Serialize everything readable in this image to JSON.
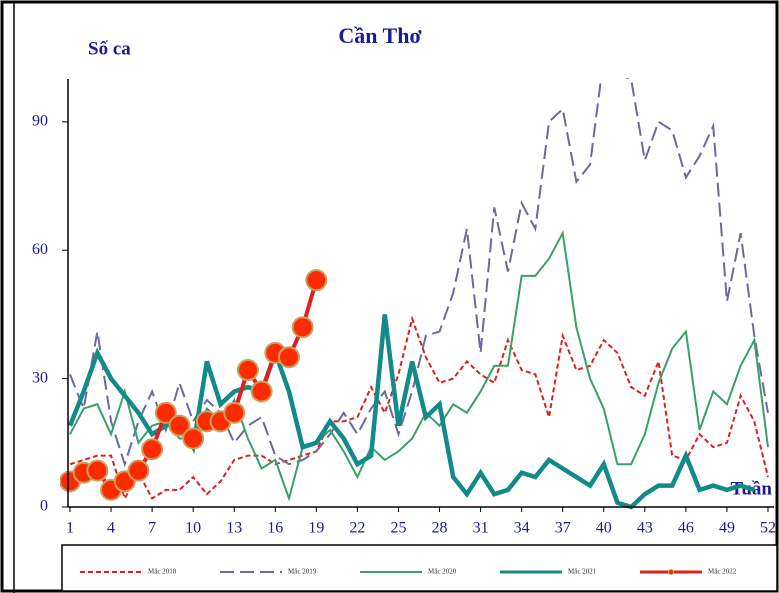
{
  "chart_data": {
    "type": "line",
    "title": "Cần Thơ",
    "y_label": "Số ca",
    "x_label": "Tuần",
    "x": [
      1,
      2,
      3,
      4,
      5,
      6,
      7,
      8,
      9,
      10,
      11,
      12,
      13,
      14,
      15,
      16,
      17,
      18,
      19,
      20,
      21,
      22,
      23,
      24,
      25,
      26,
      27,
      28,
      29,
      30,
      31,
      32,
      33,
      34,
      35,
      36,
      37,
      38,
      39,
      40,
      41,
      42,
      43,
      44,
      45,
      46,
      47,
      48,
      49,
      50,
      51,
      52
    ],
    "xlim": [
      1,
      52
    ],
    "xticks": [
      1,
      4,
      7,
      10,
      13,
      16,
      19,
      22,
      25,
      28,
      31,
      34,
      37,
      40,
      43,
      46,
      49,
      52
    ],
    "ylim": [
      0,
      100
    ],
    "yticks": [
      0,
      30,
      60,
      90
    ],
    "series": [
      {
        "name": "Mắc 2018",
        "color": "#e02020",
        "dash": "5,3",
        "width": 2,
        "values": [
          10,
          11,
          12,
          12,
          2,
          8,
          2,
          4,
          4,
          7,
          3,
          6,
          11,
          12,
          12,
          10,
          11,
          12,
          13,
          20,
          20,
          21,
          28,
          22,
          31,
          44,
          35,
          29,
          30,
          34,
          31,
          29,
          39,
          32,
          31,
          21,
          40,
          32,
          33,
          39,
          36,
          28,
          26,
          34,
          12,
          11,
          17,
          14,
          15,
          26,
          20,
          7
        ]
      },
      {
        "name": "Mắc 2019",
        "color": "#6a6aa0",
        "dash": "14,6",
        "width": 2,
        "values": [
          31,
          23,
          41,
          20,
          10,
          20,
          27,
          18,
          29,
          20,
          25,
          22,
          15,
          19,
          21,
          12,
          10,
          11,
          13,
          17,
          22,
          17,
          23,
          27,
          17,
          27,
          40,
          41,
          50,
          65,
          36,
          70,
          55,
          71,
          65,
          90,
          93,
          76,
          80,
          105,
          101,
          100,
          81,
          90,
          88,
          77,
          82,
          89,
          48,
          64,
          40,
          22
        ]
      },
      {
        "name": "Mắc 2020",
        "color": "#3aa06a",
        "dash": "",
        "width": 2,
        "values": [
          17,
          23,
          24,
          17,
          27,
          15,
          19,
          20,
          16,
          16,
          23,
          20,
          25,
          16,
          9,
          11,
          2,
          14,
          15,
          18,
          13,
          7,
          14,
          11,
          13,
          16,
          22,
          19,
          24,
          22,
          27,
          33,
          33,
          54,
          54,
          58,
          64,
          42,
          30,
          23,
          10,
          10,
          17,
          29,
          37,
          41,
          18,
          27,
          24,
          33,
          39,
          14
        ]
      },
      {
        "name": "Mắc 2021",
        "color": "#138a8a",
        "dash": "",
        "width": 4.5,
        "values": [
          19,
          27,
          36,
          30,
          26,
          22,
          17,
          19,
          20,
          14,
          34,
          24,
          27,
          28,
          27,
          36,
          27,
          14,
          15,
          20,
          16,
          10,
          12,
          45,
          19,
          34,
          21,
          24,
          7,
          3,
          8,
          3,
          4,
          8,
          7,
          11,
          9,
          7,
          5,
          10,
          1,
          0,
          3,
          5,
          5,
          12,
          4,
          5,
          4,
          5,
          4,
          null
        ]
      },
      {
        "name": "Mắc 2022",
        "color": "#e02020",
        "dash": "",
        "width": 4,
        "marker": "#ff2a00",
        "values": [
          6,
          8,
          8.5,
          4,
          6,
          8.5,
          13.5,
          22,
          19,
          16,
          20,
          20,
          22,
          32,
          27,
          36,
          35,
          42,
          53,
          null,
          null,
          null,
          null,
          null,
          null,
          null,
          null,
          null,
          null,
          null,
          null,
          null,
          null,
          null,
          null,
          null,
          null,
          null,
          null,
          null,
          null,
          null,
          null,
          null,
          null,
          null,
          null,
          null,
          null,
          null,
          null,
          null
        ]
      }
    ]
  }
}
